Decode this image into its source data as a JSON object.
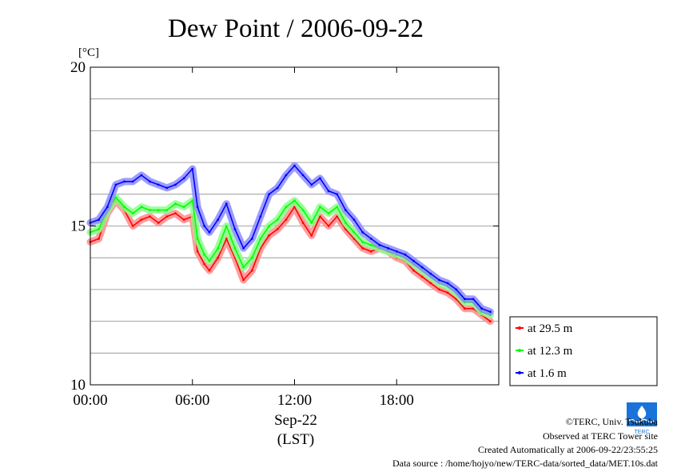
{
  "chart_data": {
    "type": "line",
    "title": "Dew Point / 2006-09-22",
    "ylabel_unit": "[°C]",
    "ylim": [
      10,
      20
    ],
    "y_ticks": [
      {
        "value": 10,
        "label": "10"
      },
      {
        "value": 15,
        "label": "15"
      },
      {
        "value": 20,
        "label": "20"
      }
    ],
    "y_gridlines": [
      11,
      12,
      13,
      14,
      15,
      16,
      17,
      18,
      19
    ],
    "xlim_hours": [
      0,
      24
    ],
    "x_ticks": [
      {
        "value": 0,
        "label": "00:00"
      },
      {
        "value": 6,
        "label": "06:00"
      },
      {
        "value": 12,
        "label": "12:00"
      },
      {
        "value": 18,
        "label": "18:00"
      }
    ],
    "x_date_label": "Sep-22",
    "x_tz_label": "(LST)",
    "grid": "horizontal",
    "legend_position": "right-bottom",
    "x": [
      0.0,
      0.5,
      1.0,
      1.5,
      2.0,
      2.5,
      3.0,
      3.5,
      4.0,
      4.5,
      5.0,
      5.5,
      6.0,
      6.3,
      6.7,
      7.0,
      7.5,
      8.0,
      8.5,
      9.0,
      9.5,
      10.0,
      10.5,
      11.0,
      11.5,
      12.0,
      12.5,
      13.0,
      13.5,
      14.0,
      14.5,
      15.0,
      15.5,
      16.0,
      16.5,
      17.0,
      17.5,
      18.0,
      18.5,
      19.0,
      19.5,
      20.0,
      20.5,
      21.0,
      21.5,
      22.0,
      22.5,
      23.0,
      23.5
    ],
    "series": [
      {
        "name": "at 29.5 m",
        "color": "#ff0000",
        "values": [
          14.5,
          14.6,
          15.4,
          15.8,
          15.5,
          15.0,
          15.2,
          15.3,
          15.1,
          15.3,
          15.4,
          15.2,
          15.3,
          14.2,
          13.8,
          13.6,
          14.0,
          14.6,
          14.0,
          13.3,
          13.6,
          14.3,
          14.7,
          14.9,
          15.2,
          15.6,
          15.1,
          14.7,
          15.3,
          15.0,
          15.3,
          14.9,
          14.6,
          14.3,
          14.2,
          14.3,
          14.2,
          14.0,
          13.9,
          13.6,
          13.4,
          13.2,
          13.0,
          12.9,
          12.7,
          12.4,
          12.4,
          12.2,
          12.0
        ]
      },
      {
        "name": "at 12.3 m",
        "color": "#00ff00",
        "values": [
          14.8,
          14.9,
          15.5,
          15.9,
          15.6,
          15.4,
          15.6,
          15.5,
          15.5,
          15.5,
          15.7,
          15.6,
          15.8,
          14.6,
          14.1,
          13.9,
          14.3,
          15.0,
          14.3,
          13.7,
          14.0,
          14.6,
          15.0,
          15.2,
          15.6,
          15.8,
          15.5,
          15.1,
          15.6,
          15.4,
          15.6,
          15.1,
          14.8,
          14.5,
          14.4,
          14.3,
          14.2,
          14.1,
          14.0,
          13.8,
          13.6,
          13.4,
          13.2,
          13.1,
          12.9,
          12.6,
          12.6,
          12.3,
          12.2
        ]
      },
      {
        "name": "at 1.6 m",
        "color": "#0000ff",
        "values": [
          15.1,
          15.2,
          15.6,
          16.3,
          16.4,
          16.4,
          16.6,
          16.4,
          16.3,
          16.2,
          16.3,
          16.5,
          16.8,
          15.6,
          15.0,
          14.8,
          15.2,
          15.7,
          14.9,
          14.3,
          14.6,
          15.3,
          16.0,
          16.2,
          16.6,
          16.9,
          16.6,
          16.3,
          16.5,
          16.1,
          16.0,
          15.5,
          15.2,
          14.8,
          14.6,
          14.4,
          14.3,
          14.2,
          14.1,
          13.9,
          13.7,
          13.5,
          13.3,
          13.2,
          13.0,
          12.7,
          12.7,
          12.4,
          12.3
        ]
      }
    ]
  },
  "credits": {
    "copyright": "©TERC, Univ. Tsukuba",
    "site": "Observed at TERC Tower site",
    "created": "Created Automatically at 2006-09-22/23:55:25",
    "source": "Data source : /home/hojyo/new/TERC-data/sorted_data/MET.10s.dat"
  },
  "logo_text": "TERC"
}
